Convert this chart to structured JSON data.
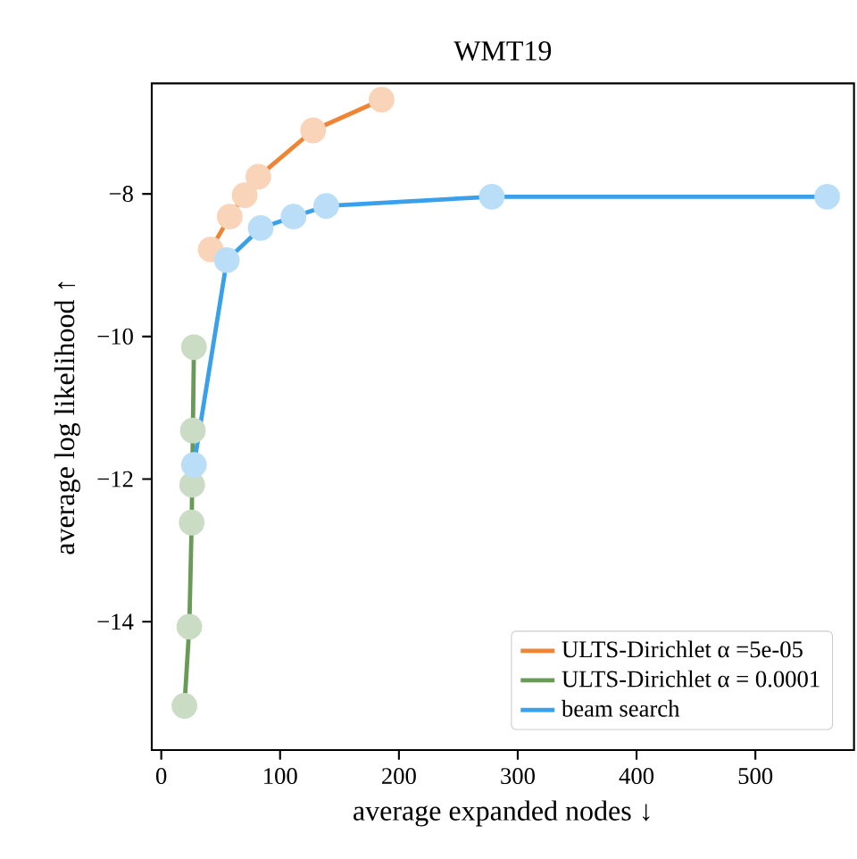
{
  "chart_data": {
    "type": "line",
    "title": "WMT19",
    "xlabel": "average expanded nodes ↓",
    "ylabel": "average log likelihood ↑",
    "xlim": [
      -8,
      583
    ],
    "ylim": [
      -15.8,
      -6.45
    ],
    "xticks": [
      0,
      100,
      200,
      300,
      400,
      500
    ],
    "yticks": [
      {
        "value": -14,
        "label": "−14"
      },
      {
        "value": -12,
        "label": "−12"
      },
      {
        "value": -10,
        "label": "−10"
      },
      {
        "value": -8,
        "label": "−8"
      }
    ],
    "marker": "circle",
    "line_style": "solid",
    "legend": "bottom right",
    "series": [
      {
        "name": "ULTS-Dirichlet α =5e-05",
        "color": "#ee8434",
        "x": [
          41.6,
          57.6,
          70.2,
          81.7,
          127.8,
          185.4
        ],
        "values": [
          -8.78,
          -8.32,
          -8.02,
          -7.76,
          -7.11,
          -6.68
        ]
      },
      {
        "name": "ULTS-Dirichlet α = 0.0001",
        "color": "#6a9a58",
        "x": [
          27.5,
          26.6,
          26.0,
          25.6,
          23.6,
          19.5
        ],
        "values": [
          -10.15,
          -11.32,
          -12.08,
          -12.61,
          -14.07,
          -15.18
        ]
      },
      {
        "name": "beam search",
        "color": "#3aa0ea",
        "x": [
          27.5,
          55.2,
          83.7,
          111.3,
          138.8,
          278.2,
          560.4
        ],
        "values": [
          -11.8,
          -8.93,
          -8.48,
          -8.32,
          -8.17,
          -8.04,
          -8.04
        ]
      }
    ]
  }
}
